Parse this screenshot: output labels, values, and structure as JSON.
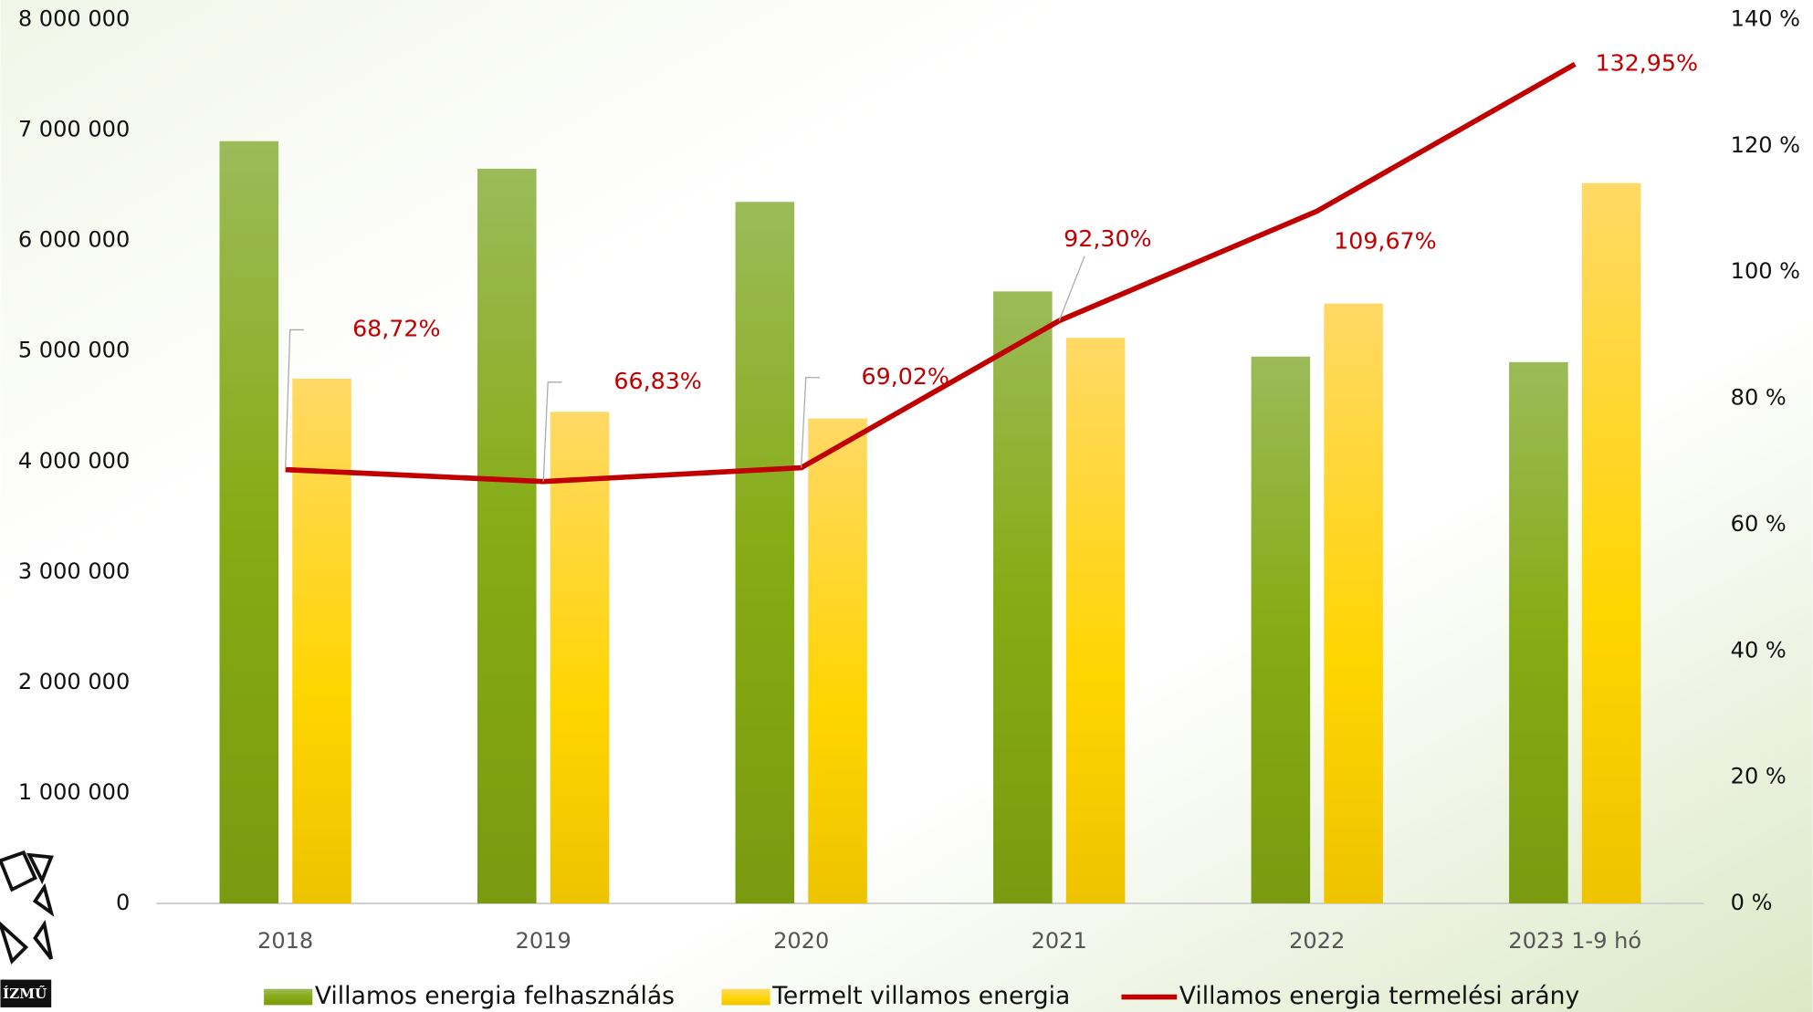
{
  "chart_data": {
    "type": "bar_line",
    "categories": [
      "2018",
      "2019",
      "2020",
      "2021",
      "2022",
      "2023 1-9 hó"
    ],
    "series": [
      {
        "name": "Villamos energia felhasználás",
        "color": "#86a81e",
        "values": [
          6900000,
          6650000,
          6350000,
          5540000,
          4950000,
          4900000
        ]
      },
      {
        "name": "Termelt villamos energia",
        "color": "#ffd21f",
        "values": [
          4750000,
          4450000,
          4390000,
          5120000,
          5430000,
          6520000
        ]
      },
      {
        "name": "Villamos energia termelési arány",
        "color": "#c00000",
        "axis": "y2",
        "values": [
          68.72,
          66.83,
          69.02,
          92.3,
          109.67,
          132.95
        ],
        "value_labels": [
          "68,72%",
          "66,83%",
          "69,02%",
          "92,30%",
          "109,67%",
          "132,95%"
        ]
      }
    ],
    "ylim": [
      0,
      8000000
    ],
    "yticks": [
      0,
      {
        "value": 1000000,
        "label": "1 000 000"
      },
      {
        "value": 2000000,
        "label": "2 000 000"
      },
      {
        "value": 3000000,
        "label": "3 000 000"
      },
      {
        "value": 4000000,
        "label": "4 000 000"
      },
      {
        "value": 5000000,
        "label": "5 000 000"
      },
      {
        "value": 6000000,
        "label": "6 000 000"
      },
      {
        "value": 7000000,
        "label": "7 000 000"
      },
      {
        "value": 8000000,
        "label": "8 000 000"
      }
    ],
    "y2lim": [
      0,
      140
    ],
    "y2ticks": [
      {
        "value": 0,
        "label": "0 %"
      },
      {
        "value": 20,
        "label": "20 %"
      },
      {
        "value": 40,
        "label": "40 %"
      },
      {
        "value": 60,
        "label": "60 %"
      },
      {
        "value": 80,
        "label": "80 %"
      },
      {
        "value": 100,
        "label": "100 %"
      },
      {
        "value": 120,
        "label": "120 %"
      },
      {
        "value": 140,
        "label": "140 %"
      }
    ],
    "legend": "bottom",
    "logo_text": "ÍZMŰ"
  }
}
